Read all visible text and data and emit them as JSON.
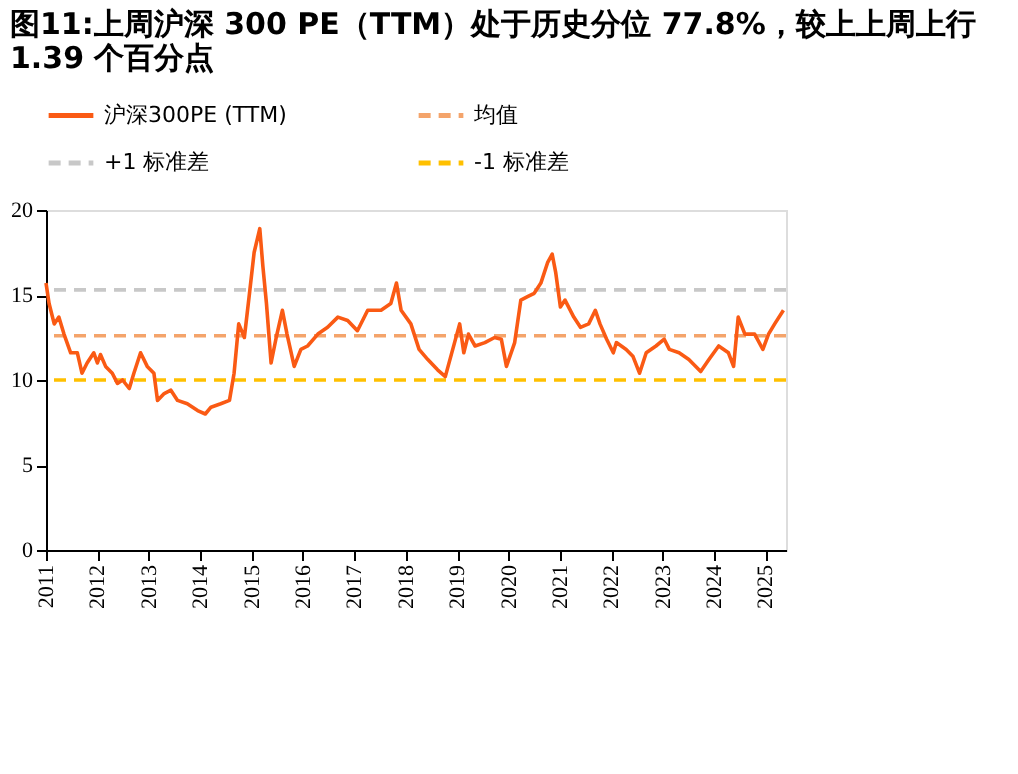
{
  "chart_data": {
    "type": "line",
    "title": "图11:上周沪深 300 PE（TTM）处于历史分位 77.8%，较上上周上行 1.39 个百分点",
    "x": [
      2011.0,
      2011.06,
      2011.16,
      2011.25,
      2011.35,
      2011.48,
      2011.61,
      2011.7,
      2011.8,
      2011.93,
      2012.0,
      2012.06,
      2012.16,
      2012.29,
      2012.39,
      2012.49,
      2012.62,
      2012.71,
      2012.84,
      2012.97,
      2013.1,
      2013.17,
      2013.3,
      2013.43,
      2013.56,
      2013.75,
      2013.95,
      2014.1,
      2014.21,
      2014.4,
      2014.57,
      2014.66,
      2014.75,
      2014.86,
      2014.96,
      2015.05,
      2015.16,
      2015.22,
      2015.29,
      2015.38,
      2015.48,
      2015.6,
      2015.69,
      2015.83,
      2015.96,
      2016.09,
      2016.29,
      2016.48,
      2016.68,
      2016.87,
      2017.06,
      2017.26,
      2017.52,
      2017.71,
      2017.82,
      2017.91,
      2018.1,
      2018.26,
      2018.43,
      2018.62,
      2018.77,
      2019.05,
      2019.13,
      2019.22,
      2019.35,
      2019.54,
      2019.73,
      2019.86,
      2019.96,
      2020.12,
      2020.24,
      2020.37,
      2020.5,
      2020.63,
      2020.76,
      2020.85,
      2020.92,
      2021.01,
      2021.1,
      2021.27,
      2021.4,
      2021.56,
      2021.69,
      2021.78,
      2021.91,
      2022.04,
      2022.1,
      2022.29,
      2022.42,
      2022.55,
      2022.68,
      2022.87,
      2023.03,
      2023.13,
      2023.32,
      2023.51,
      2023.74,
      2023.9,
      2024.09,
      2024.28,
      2024.38,
      2024.47,
      2024.6,
      2024.79,
      2024.95,
      2025.06,
      2025.18,
      2025.35
    ],
    "series": [
      {
        "name": "沪深300PE (TTM)",
        "color": "#fa5a14",
        "values": [
          15.7,
          14.5,
          13.3,
          13.7,
          12.7,
          11.6,
          11.6,
          10.4,
          11.0,
          11.6,
          11.0,
          11.5,
          10.8,
          10.4,
          9.8,
          10.0,
          9.5,
          10.4,
          11.6,
          10.8,
          10.4,
          8.8,
          9.2,
          9.4,
          8.8,
          8.6,
          8.2,
          8.0,
          8.4,
          8.6,
          8.8,
          10.4,
          13.3,
          12.5,
          15.1,
          17.5,
          18.9,
          16.7,
          14.5,
          11.0,
          12.5,
          14.1,
          12.7,
          10.8,
          11.8,
          12.0,
          12.7,
          13.1,
          13.7,
          13.5,
          12.9,
          14.1,
          14.1,
          14.5,
          15.7,
          14.1,
          13.3,
          11.8,
          11.2,
          10.6,
          10.2,
          13.3,
          11.6,
          12.7,
          12.0,
          12.2,
          12.5,
          12.4,
          10.8,
          12.2,
          14.7,
          14.9,
          15.1,
          15.7,
          16.9,
          17.4,
          16.3,
          14.3,
          14.7,
          13.7,
          13.1,
          13.3,
          14.1,
          13.3,
          12.4,
          11.6,
          12.2,
          11.8,
          11.4,
          10.4,
          11.6,
          12.0,
          12.4,
          11.8,
          11.6,
          11.2,
          10.5,
          11.2,
          12.0,
          11.6,
          10.8,
          13.7,
          12.7,
          12.7,
          11.8,
          12.7,
          13.3,
          14.1
        ]
      }
    ],
    "ref_lines": [
      {
        "axis": "y",
        "value": 12.6,
        "label": "均值",
        "color": "#f4a46b",
        "line_style": "dashed"
      },
      {
        "axis": "y",
        "value": 15.3,
        "label": "+1 标准差",
        "color": "#c8c8c8",
        "line_style": "dashed"
      },
      {
        "axis": "y",
        "value": 10.0,
        "label": "-1 标准差",
        "color": "#ffc000",
        "line_style": "dashed"
      }
    ],
    "xlim": [
      2011,
      2025.4
    ],
    "xticks": [
      2011,
      2012,
      2013,
      2014,
      2015,
      2016,
      2017,
      2018,
      2019,
      2020,
      2021,
      2022,
      2023,
      2024,
      2025
    ],
    "ylim": [
      0,
      20
    ],
    "yticks": [
      0,
      5,
      10,
      15,
      20
    ],
    "grid": false,
    "legend": "top",
    "marker": "none",
    "line_style": "solid"
  }
}
